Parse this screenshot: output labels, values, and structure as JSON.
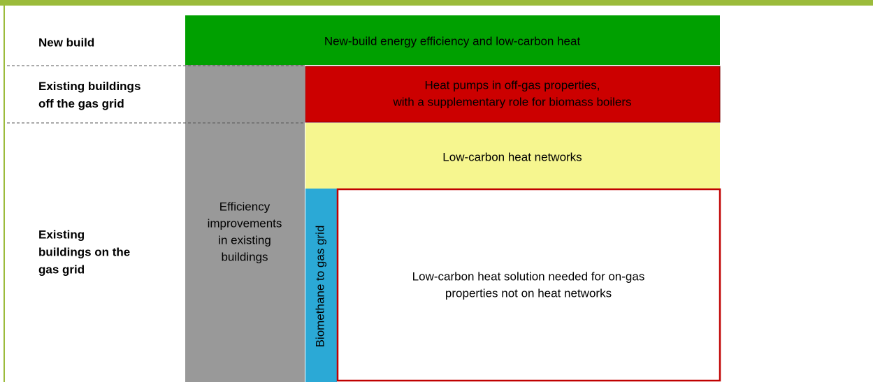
{
  "row_labels": [
    {
      "lines": [
        "New build"
      ]
    },
    {
      "lines": [
        "Existing buildings",
        "off the gas grid"
      ]
    },
    {
      "lines": [
        "Existing",
        "buildings on the",
        "gas grid"
      ]
    }
  ],
  "boxes": {
    "new_build": {
      "lines": [
        "New-build energy efficiency and low-carbon heat"
      ]
    },
    "efficiency": {
      "lines": [
        "Efficiency",
        "improvements",
        "in existing",
        "buildings"
      ]
    },
    "heat_pumps": {
      "lines": [
        "Heat pumps in off-gas properties,",
        "with a supplementary  role for biomass boilers"
      ]
    },
    "heat_networks": {
      "lines": [
        "Low-carbon heat networks"
      ]
    },
    "biomethane": {
      "lines": [
        "Biomethane to gas grid"
      ]
    },
    "solution_needed": {
      "lines": [
        "Low-carbon heat solution needed for on-gas",
        "properties not on heat networks"
      ]
    }
  }
}
